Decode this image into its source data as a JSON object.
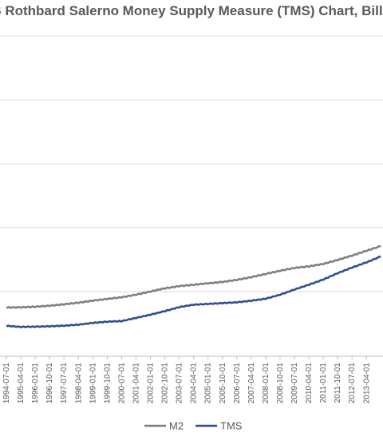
{
  "chart_data": {
    "type": "line",
    "title": "US Rothbard Salerno Money Supply Measure (TMS) Chart, Billions",
    "xlabel": "",
    "ylabel": "",
    "grid": true,
    "legend_position": "bottom",
    "x_tick_labels": [
      "1994-07-01",
      "1995-04-01",
      "1996-01-01",
      "1996-10-01",
      "1997-07-01",
      "1998-04-01",
      "1999-01-01",
      "1999-10-01",
      "2000-07-01",
      "2001-04-01",
      "2002-01-01",
      "2002-10-01",
      "2003-07-01",
      "2004-04-01",
      "2005-01-01",
      "2005-10-01",
      "2006-07-01",
      "2007-04-01",
      "2008-01-01",
      "2008-10-01",
      "2009-07-01",
      "2010-04-01",
      "2011-01-01",
      "2011-10-01",
      "2012-07-01",
      "2013-04-01"
    ],
    "x": [
      "1994-07-01",
      "1995-04-01",
      "1996-01-01",
      "1996-10-01",
      "1997-07-01",
      "1998-04-01",
      "1999-01-01",
      "1999-10-01",
      "2000-07-01",
      "2001-04-01",
      "2002-01-01",
      "2002-10-01",
      "2003-07-01",
      "2004-04-01",
      "2005-01-01",
      "2005-10-01",
      "2006-07-01",
      "2007-04-01",
      "2008-01-01",
      "2008-10-01",
      "2009-07-01",
      "2010-04-01",
      "2011-01-01",
      "2011-10-01",
      "2012-07-01",
      "2013-04-01",
      "2013-10-01"
    ],
    "series": [
      {
        "name": "M2",
        "color": "#808080",
        "values": [
          1.0,
          1.04,
          1.2,
          1.45,
          1.8,
          2.2,
          2.7,
          3.15,
          3.55,
          4.2,
          5.0,
          5.8,
          6.35,
          6.7,
          7.05,
          7.4,
          7.9,
          8.6,
          9.4,
          10.2,
          10.9,
          11.3,
          11.9,
          12.9,
          14.0,
          15.2,
          16.4
        ]
      },
      {
        "name": "TMS",
        "color": "#2f4f8f",
        "values": [
          -3.6,
          -3.85,
          -3.8,
          -3.7,
          -3.55,
          -3.3,
          -2.85,
          -2.55,
          -2.4,
          -1.6,
          -0.8,
          0.1,
          1.1,
          1.7,
          1.9,
          2.1,
          2.3,
          2.7,
          3.2,
          4.2,
          5.5,
          6.7,
          8.0,
          9.6,
          11.0,
          12.3,
          13.8
        ]
      }
    ],
    "legend": [
      "M2",
      "TMS"
    ]
  }
}
